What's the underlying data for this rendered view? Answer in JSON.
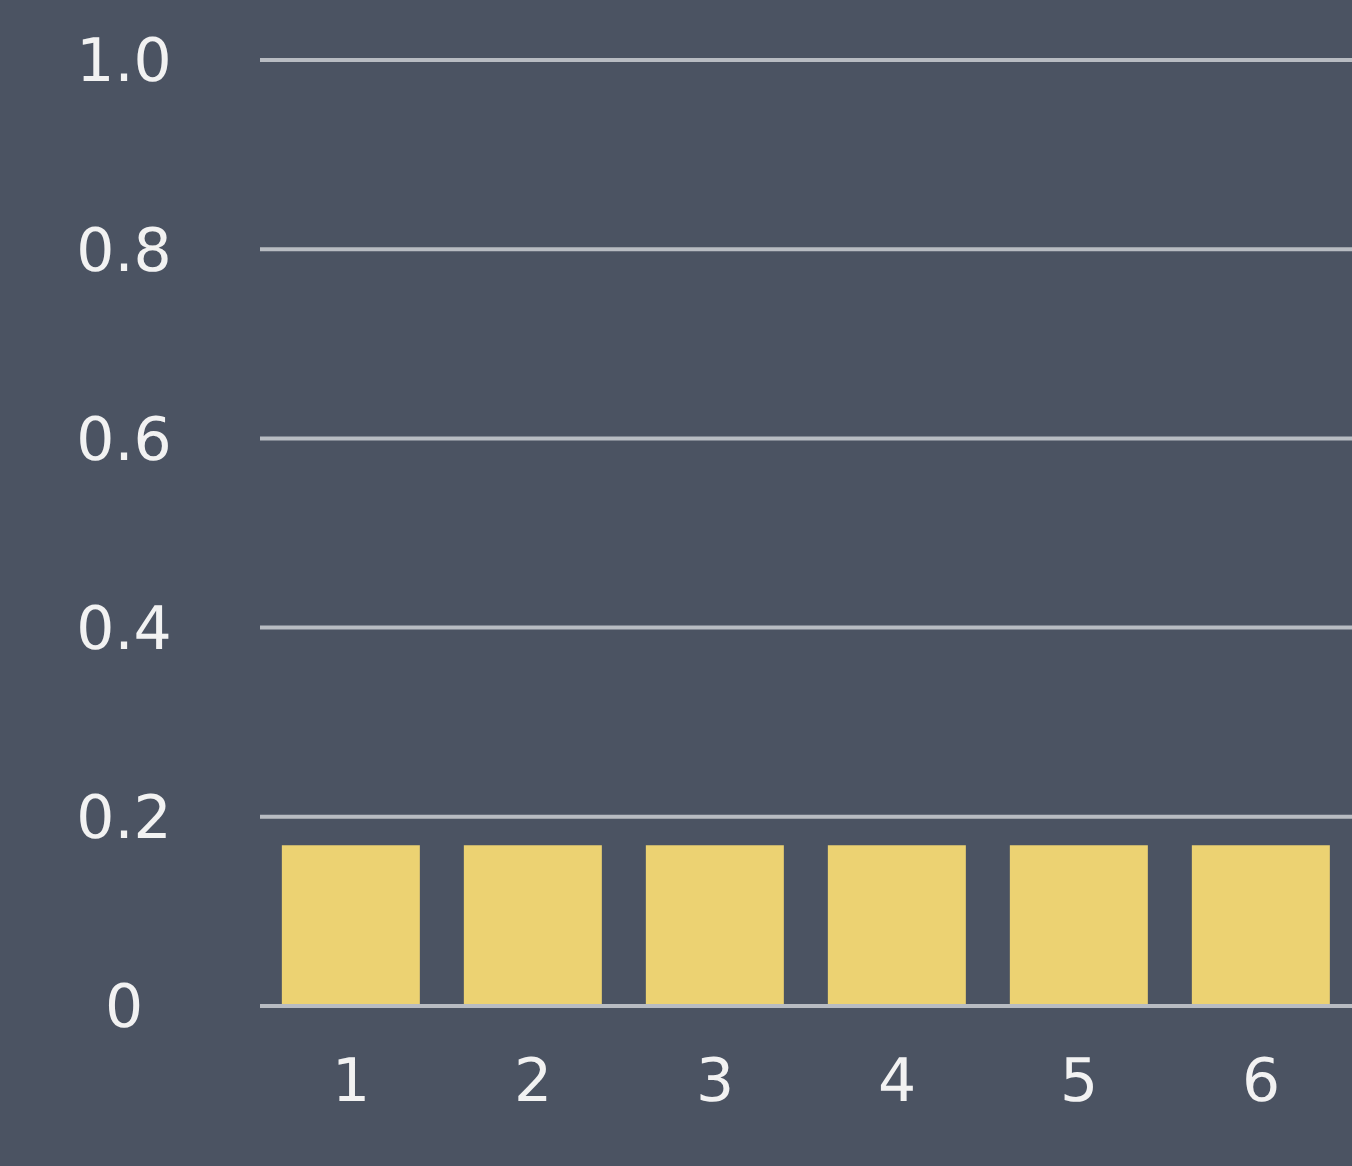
{
  "chart_data": {
    "type": "bar",
    "categories": [
      "1",
      "2",
      "3",
      "4",
      "5",
      "6"
    ],
    "values": [
      0.17,
      0.17,
      0.17,
      0.17,
      0.17,
      0.17
    ],
    "color": "#ecd272",
    "ylim": [
      0,
      1.0
    ],
    "yticks": [
      {
        "value": 0,
        "label": "0"
      },
      {
        "value": 0.2,
        "label": "0.2"
      },
      {
        "value": 0.4,
        "label": "0.4"
      },
      {
        "value": 0.6,
        "label": "0.6"
      },
      {
        "value": 0.8,
        "label": "0.8"
      },
      {
        "value": 1.0,
        "label": "1.0"
      }
    ],
    "grid": "y"
  }
}
